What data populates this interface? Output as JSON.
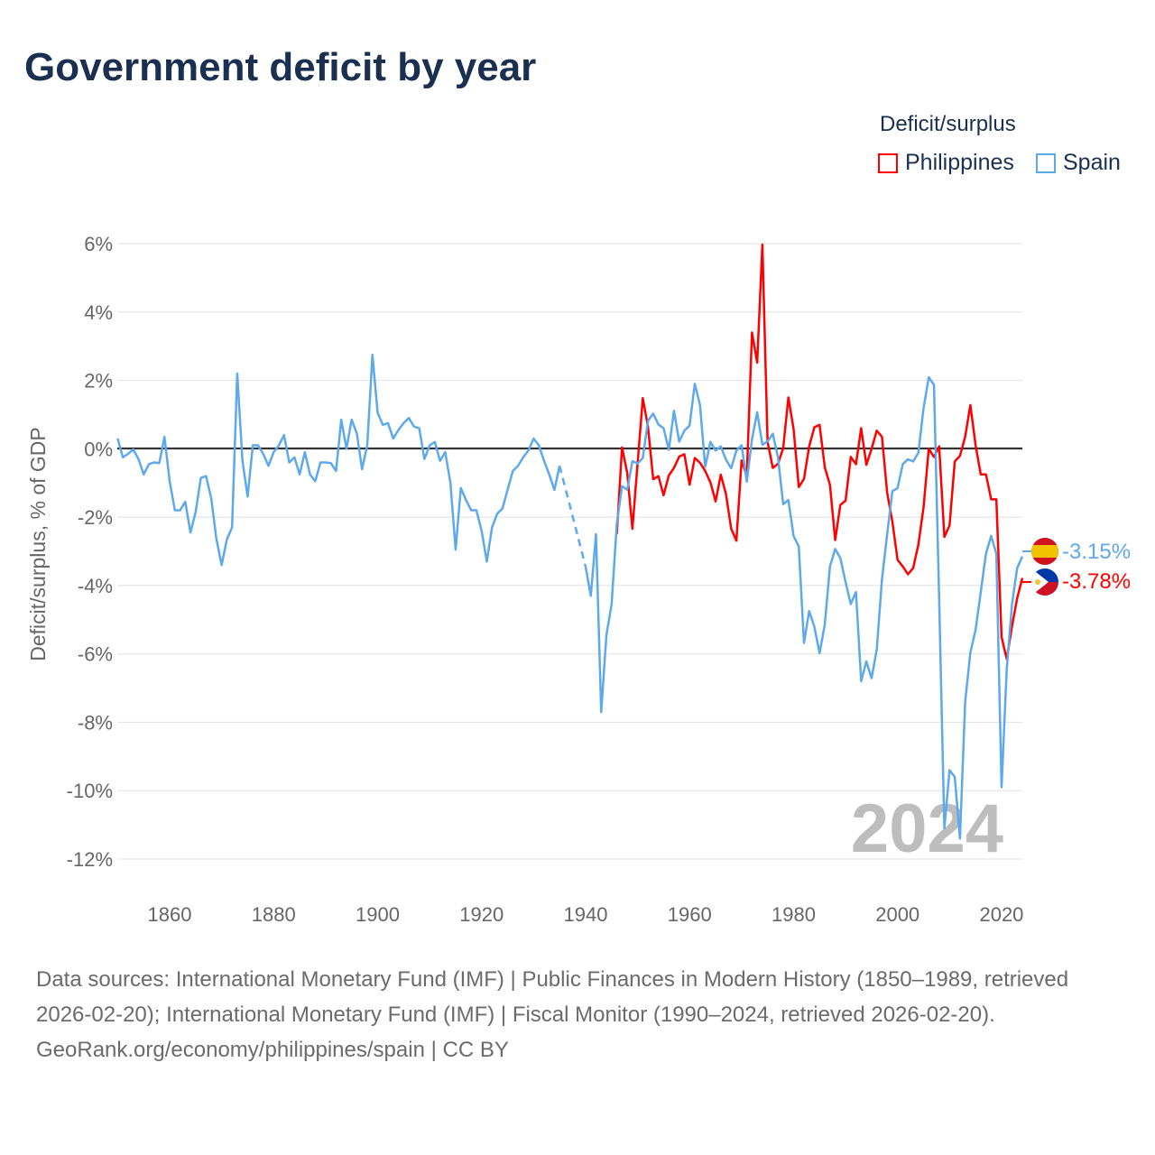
{
  "title": "Government deficit by year",
  "legend": {
    "title": "Deficit/surplus",
    "items": [
      {
        "name": "Philippines",
        "color": "#ff0000"
      },
      {
        "name": "Spain",
        "color": "#5ea8ec"
      }
    ]
  },
  "year_watermark": "2024",
  "end_labels": {
    "spain": "-3.15%",
    "philippines": "-3.78%"
  },
  "footer": {
    "sources": "Data sources: International Monetary Fund (IMF) | Public Finances in Modern History (1850–1989, retrieved 2026-02-20); International Monetary Fund (IMF) | Fiscal Monitor (1990–2024, retrieved 2026-02-20).",
    "credit": "GeoRank.org/economy/philippines/spain | CC BY"
  },
  "chart_data": {
    "type": "line",
    "title": "Government deficit by year",
    "xlabel": "",
    "ylabel": "Deficit/surplus, % of GDP",
    "xlim": [
      1850,
      2024
    ],
    "ylim": [
      -12,
      6
    ],
    "xticks": [
      1860,
      1880,
      1900,
      1920,
      1940,
      1960,
      1980,
      2000,
      2020
    ],
    "yticks": [
      6,
      4,
      2,
      0,
      -2,
      -4,
      -6,
      -8,
      -10,
      -12
    ],
    "ytick_labels": [
      "6%",
      "4%",
      "2%",
      "0%",
      "-2%",
      "-4%",
      "-6%",
      "-8%",
      "-10%",
      "-12%"
    ],
    "grid": true,
    "legend_position": "top-right",
    "series": [
      {
        "name": "Spain",
        "color": "#5ea8ec",
        "start_year": 1850,
        "values": [
          0.3,
          -0.25,
          -0.15,
          -0.02,
          -0.3,
          -0.75,
          -0.45,
          -0.4,
          -0.42,
          0.35,
          -0.95,
          -1.8,
          -1.8,
          -1.55,
          -2.45,
          -1.85,
          -0.85,
          -0.8,
          -1.45,
          -2.65,
          -3.4,
          -2.65,
          -2.3,
          2.2,
          -0.35,
          -1.4,
          0.1,
          0.1,
          -0.15,
          -0.5,
          -0.1,
          0.1,
          0.4,
          -0.4,
          -0.25,
          -0.75,
          -0.1,
          -0.75,
          -0.95,
          -0.4,
          -0.4,
          -0.42,
          -0.65,
          0.85,
          0,
          0.85,
          0.45,
          -0.6,
          0.1,
          2.75,
          1.05,
          0.7,
          0.75,
          0.3,
          0.55,
          0.75,
          0.9,
          0.65,
          0.6,
          -0.3,
          0.1,
          0.2,
          -0.35,
          -0.1,
          -1.0,
          -2.95,
          -1.15,
          -1.5,
          -1.8,
          -1.8,
          -2.4,
          -3.3,
          -2.3,
          -1.9,
          -1.75,
          -1.2,
          -0.65,
          -0.5,
          -0.25,
          -0.05,
          0.3,
          0.1,
          -0.35,
          -0.75,
          -1.2,
          -0.5,
          null,
          null,
          null,
          null,
          -3.45,
          -4.3,
          -2.5,
          -7.7,
          -5.45,
          -4.55,
          -2.2,
          -1.09,
          -1.2,
          -0.36,
          -0.43,
          -0.27,
          0.82,
          1.03,
          0.71,
          0.6,
          -0.03,
          1.11,
          0.21,
          0.53,
          0.68,
          1.9,
          1.28,
          -0.53,
          0.2,
          -0.05,
          0.07,
          -0.32,
          -0.57,
          -0.05,
          0.1,
          -0.96,
          0.28,
          1.07,
          0.12,
          0.21,
          0.44,
          -0.25,
          -1.62,
          -1.5,
          -2.55,
          -2.86,
          -5.68,
          -4.75,
          -5.21,
          -5.98,
          -5.14,
          -3.44,
          -2.93,
          -3.2,
          -3.9,
          -4.54,
          -4.19,
          -6.8,
          -6.22,
          -6.71,
          -5.87,
          -3.81,
          -2.5,
          -1.24,
          -1.15,
          -0.45,
          -0.31,
          -0.37,
          -0.12,
          1.19,
          2.09,
          1.87,
          -4.4,
          -11.1,
          -9.4,
          -9.6,
          -11.4,
          -7.4,
          -5.96,
          -5.3,
          -4.19,
          -3.07,
          -2.55,
          -3.07,
          -9.9,
          -6.43,
          -4.56,
          -3.49,
          -3.15
        ]
      },
      {
        "name": "Philippines",
        "color": "#ff0000",
        "start_year": 1946,
        "values": [
          -2.5,
          0.04,
          -0.7,
          -2.34,
          -0.43,
          1.48,
          0.64,
          -0.89,
          -0.8,
          -1.36,
          -0.78,
          -0.56,
          -0.23,
          -0.16,
          -1.05,
          -0.27,
          -0.41,
          -0.65,
          -0.98,
          -1.54,
          -0.76,
          -1.33,
          -2.34,
          -2.69,
          -0.34,
          -0.8,
          3.4,
          2.52,
          5.97,
          0.2,
          -0.56,
          -0.44,
          0.02,
          1.5,
          0.58,
          -1.12,
          -0.88,
          0.07,
          0.63,
          0.7,
          -0.54,
          -1.06,
          -2.67,
          -1.64,
          -1.52,
          -0.24,
          -0.45,
          0.6,
          -0.47,
          0,
          0.53,
          0.35,
          -1.29,
          -2.13,
          -3.25,
          -3.44,
          -3.67,
          -3.49,
          -2.8,
          -1.71,
          0,
          -0.24,
          0.07,
          -2.58,
          -2.24,
          -0.37,
          -0.21,
          0.35,
          1.28,
          0.11,
          -0.75,
          -0.75,
          -1.48,
          -1.48,
          -5.51,
          -6.15,
          -5.2,
          -4.37,
          -3.78
        ]
      }
    ]
  }
}
